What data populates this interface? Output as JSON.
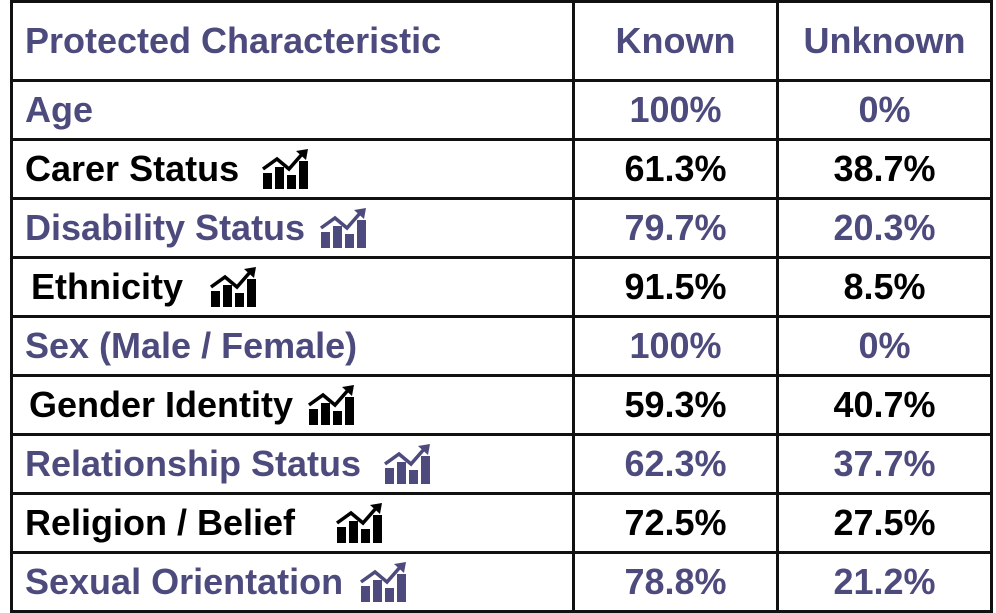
{
  "table": {
    "header": [
      "Protected Characteristic",
      "Known",
      "Unknown"
    ],
    "rows": [
      [
        "Age",
        "100%",
        "0%"
      ],
      [
        "Carer Status",
        "61.3%",
        "38.7%"
      ],
      [
        "Disability Status",
        "79.7%",
        "20.3%"
      ],
      [
        "Ethnicity",
        "91.5%",
        "8.5%"
      ],
      [
        "Sex (Male / Female)",
        "100%",
        "0%"
      ],
      [
        "Gender Identity",
        "59.3%",
        "40.7%"
      ],
      [
        "Relationship Status",
        "62.3%",
        "37.7%"
      ],
      [
        "Religion / Belief",
        "72.5%",
        "27.5%"
      ],
      [
        "Sexual Orientation",
        "78.8%",
        "21.2%"
      ]
    ]
  }
}
